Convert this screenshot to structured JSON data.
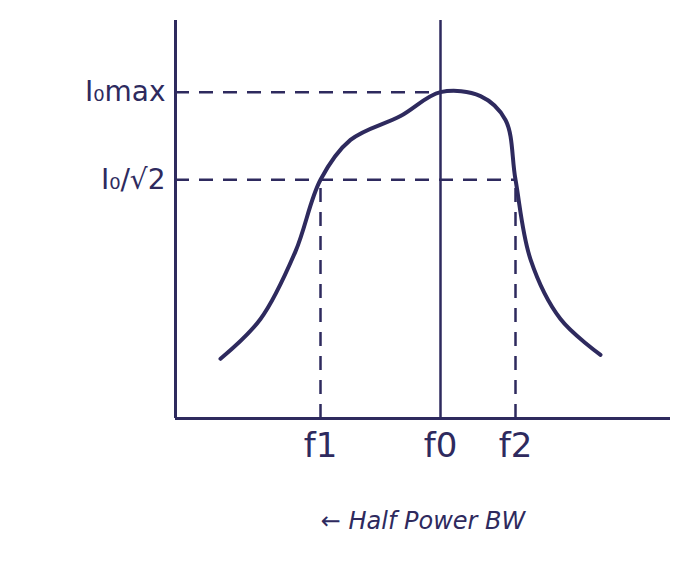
{
  "chart_data": {
    "type": "line",
    "x": [
      0.9,
      1.7,
      2.4,
      2.9,
      3.5,
      4.5,
      5.3,
      6.1,
      6.6,
      6.8,
      7.1,
      7.7,
      8.5
    ],
    "values": [
      1.5,
      2.5,
      4.2,
      6.0,
      7.0,
      7.6,
      8.2,
      8.1,
      7.5,
      6.0,
      4.0,
      2.5,
      1.6
    ],
    "color": "#2e2a5e",
    "line_style": "solid",
    "xlim": [
      0,
      9.9
    ],
    "ylim": [
      0,
      10
    ],
    "xticks": [
      {
        "value": 2.9,
        "label": "f1"
      },
      {
        "value": 5.3,
        "label": "f0"
      },
      {
        "value": 6.8,
        "label": "f2"
      }
    ],
    "yticks": [
      {
        "value": 6.0,
        "label": "I₀/√2"
      },
      {
        "value": 8.2,
        "label": "I₀max"
      }
    ],
    "annotations": [
      "← Half Power BW"
    ],
    "grid": false
  }
}
